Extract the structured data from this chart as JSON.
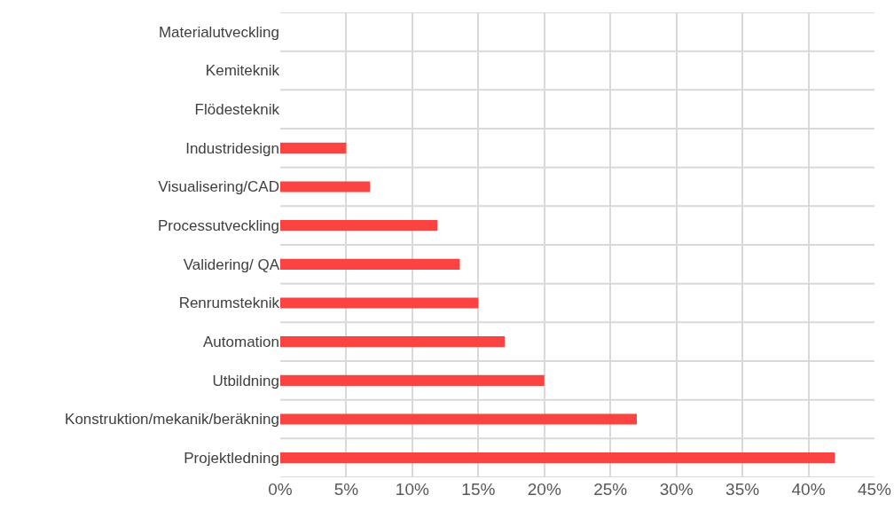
{
  "chart_data": {
    "type": "bar",
    "orientation": "horizontal",
    "categories": [
      "Materialutveckling",
      "Kemiteknik",
      "Flödesteknik",
      "Industridesign",
      "Visualisering/CAD",
      "Processutveckling",
      "Validering/ QA",
      "Renrumsteknik",
      "Automation",
      "Utbildning",
      "Konstruktion/mekanik/beräkning",
      "Projektledning"
    ],
    "values": [
      0,
      0,
      0,
      5,
      6.8,
      11.9,
      13.6,
      15,
      17,
      20,
      27,
      42
    ],
    "color": "#fb4441",
    "xlim": [
      0,
      45
    ],
    "xticks": [
      {
        "value": 0,
        "label": "0%"
      },
      {
        "value": 5,
        "label": "5%"
      },
      {
        "value": 10,
        "label": "10%"
      },
      {
        "value": 15,
        "label": "15%"
      },
      {
        "value": 20,
        "label": "20%"
      },
      {
        "value": 25,
        "label": "25%"
      },
      {
        "value": 30,
        "label": "30%"
      },
      {
        "value": 35,
        "label": "35%"
      },
      {
        "value": 40,
        "label": "40%"
      },
      {
        "value": 45,
        "label": "45%"
      }
    ],
    "grid": true
  }
}
